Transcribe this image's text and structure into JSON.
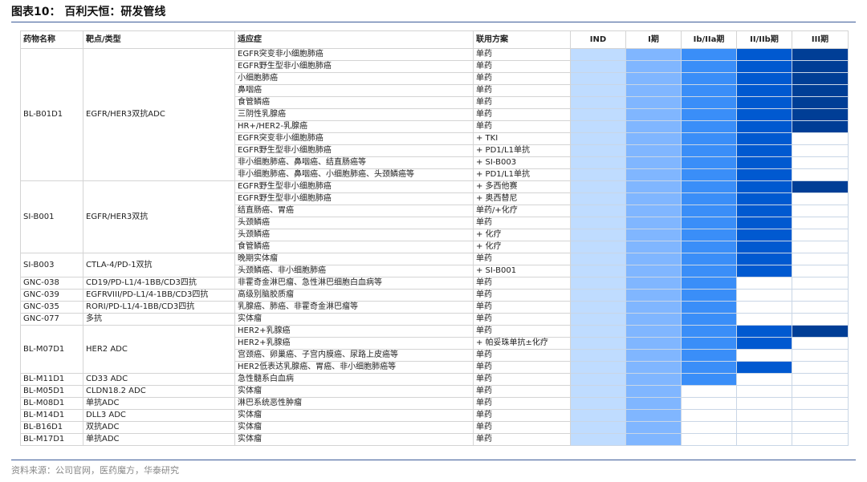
{
  "title": "图表10： 百利天恒：研发管线",
  "source": "资料来源：公司官网，医药魔方，华泰研究",
  "columns": [
    "药物名称",
    "靶点/类型",
    "适应症",
    "联用方案",
    "IND",
    "I期",
    "Ib/IIa期",
    "II/IIb期",
    "III期"
  ],
  "phase_colors": [
    "#bfdcff",
    "#80b6ff",
    "#3a8ef8",
    "#0059d0",
    "#003e96"
  ],
  "drugs": [
    {
      "name": "BL-B01D1",
      "target": "EGFR/HER3双抗ADC",
      "rows": [
        {
          "indication": "EGFR突变非小细胞肺癌",
          "combo": "单药",
          "phase": 5
        },
        {
          "indication": "EGFR野生型非小细胞肺癌",
          "combo": "单药",
          "phase": 5
        },
        {
          "indication": "小细胞肺癌",
          "combo": "单药",
          "phase": 5
        },
        {
          "indication": "鼻咽癌",
          "combo": "单药",
          "phase": 5
        },
        {
          "indication": "食管鳞癌",
          "combo": "单药",
          "phase": 5
        },
        {
          "indication": "三阴性乳腺癌",
          "combo": "单药",
          "phase": 5
        },
        {
          "indication": "HR+/HER2-乳腺癌",
          "combo": "单药",
          "phase": 5
        },
        {
          "indication": "EGFR突变非小细胞肺癌",
          "combo": "+ TKI",
          "phase": 4
        },
        {
          "indication": "EGFR野生型非小细胞肺癌",
          "combo": "+ PD1/L1单抗",
          "phase": 4
        },
        {
          "indication": "非小细胞肺癌、鼻咽癌、结直肠癌等",
          "combo": "+ SI-B003",
          "phase": 4
        },
        {
          "indication": "非小细胞肺癌、鼻咽癌、小细胞肺癌、头颈鳞癌等",
          "combo": "+ PD1/L1单抗",
          "phase": 4
        }
      ]
    },
    {
      "name": "SI-B001",
      "target": "EGFR/HER3双抗",
      "rows": [
        {
          "indication": "EGFR野生型非小细胞肺癌",
          "combo": "+ 多西他赛",
          "phase": 5
        },
        {
          "indication": "EGFR野生型非小细胞肺癌",
          "combo": "+ 奥西替尼",
          "phase": 4
        },
        {
          "indication": "结直肠癌、胃癌",
          "combo": "单药/+化疗",
          "phase": 4
        },
        {
          "indication": "头颈鳞癌",
          "combo": "单药",
          "phase": 4
        },
        {
          "indication": "头颈鳞癌",
          "combo": "+ 化疗",
          "phase": 4
        },
        {
          "indication": "食管鳞癌",
          "combo": "+ 化疗",
          "phase": 4
        }
      ]
    },
    {
      "name": "SI-B003",
      "target": "CTLA-4/PD-1双抗",
      "rows": [
        {
          "indication": "晚期实体瘤",
          "combo": "单药",
          "phase": 4
        },
        {
          "indication": "头颈鳞癌、非小细胞肺癌",
          "combo": "+ SI-B001",
          "phase": 4
        }
      ]
    },
    {
      "name": "GNC-038",
      "target": "CD19/PD-L1/4-1BB/CD3四抗",
      "rows": [
        {
          "indication": "非霍奇金淋巴瘤、急性淋巴细胞白血病等",
          "combo": "单药",
          "phase": 3
        }
      ]
    },
    {
      "name": "GNC-039",
      "target": "EGFRVIII/PD-L1/4-1BB/CD3四抗",
      "rows": [
        {
          "indication": "高级别脑胶质瘤",
          "combo": "单药",
          "phase": 3
        }
      ]
    },
    {
      "name": "GNC-035",
      "target": "RORI/PD-L1/4-1BB/CD3四抗",
      "rows": [
        {
          "indication": "乳腺癌、肺癌、非霍奇金淋巴瘤等",
          "combo": "单药",
          "phase": 3
        }
      ]
    },
    {
      "name": "GNC-077",
      "target": "多抗",
      "rows": [
        {
          "indication": "实体瘤",
          "combo": "单药",
          "phase": 3
        }
      ]
    },
    {
      "name": "BL-M07D1",
      "target": "HER2 ADC",
      "rows": [
        {
          "indication": "HER2+乳腺癌",
          "combo": "单药",
          "phase": 5
        },
        {
          "indication": "HER2+乳腺癌",
          "combo": "+ 帕妥珠单抗±化疗",
          "phase": 4
        },
        {
          "indication": "宫颈癌、卵巢癌、子宫内膜癌、尿路上皮癌等",
          "combo": "单药",
          "phase": 3
        },
        {
          "indication": "HER2低表达乳腺癌、胃癌、非小细胞肺癌等",
          "combo": "单药",
          "phase": 4
        }
      ]
    },
    {
      "name": "BL-M11D1",
      "target": "CD33 ADC",
      "rows": [
        {
          "indication": "急性髓系白血病",
          "combo": "单药",
          "phase": 3
        }
      ]
    },
    {
      "name": "BL-M05D1",
      "target": "CLDN18.2 ADC",
      "rows": [
        {
          "indication": "实体瘤",
          "combo": "单药",
          "phase": 2
        }
      ]
    },
    {
      "name": "BL-M08D1",
      "target": "单抗ADC",
      "rows": [
        {
          "indication": "淋巴系统恶性肿瘤",
          "combo": "单药",
          "phase": 2
        }
      ]
    },
    {
      "name": "BL-M14D1",
      "target": "DLL3 ADC",
      "rows": [
        {
          "indication": "实体瘤",
          "combo": "单药",
          "phase": 2
        }
      ]
    },
    {
      "name": "BL-B16D1",
      "target": "双抗ADC",
      "rows": [
        {
          "indication": "实体瘤",
          "combo": "单药",
          "phase": 2
        }
      ]
    },
    {
      "name": "BL-M17D1",
      "target": "单抗ADC",
      "rows": [
        {
          "indication": "实体瘤",
          "combo": "单药",
          "phase": 2
        }
      ]
    }
  ]
}
